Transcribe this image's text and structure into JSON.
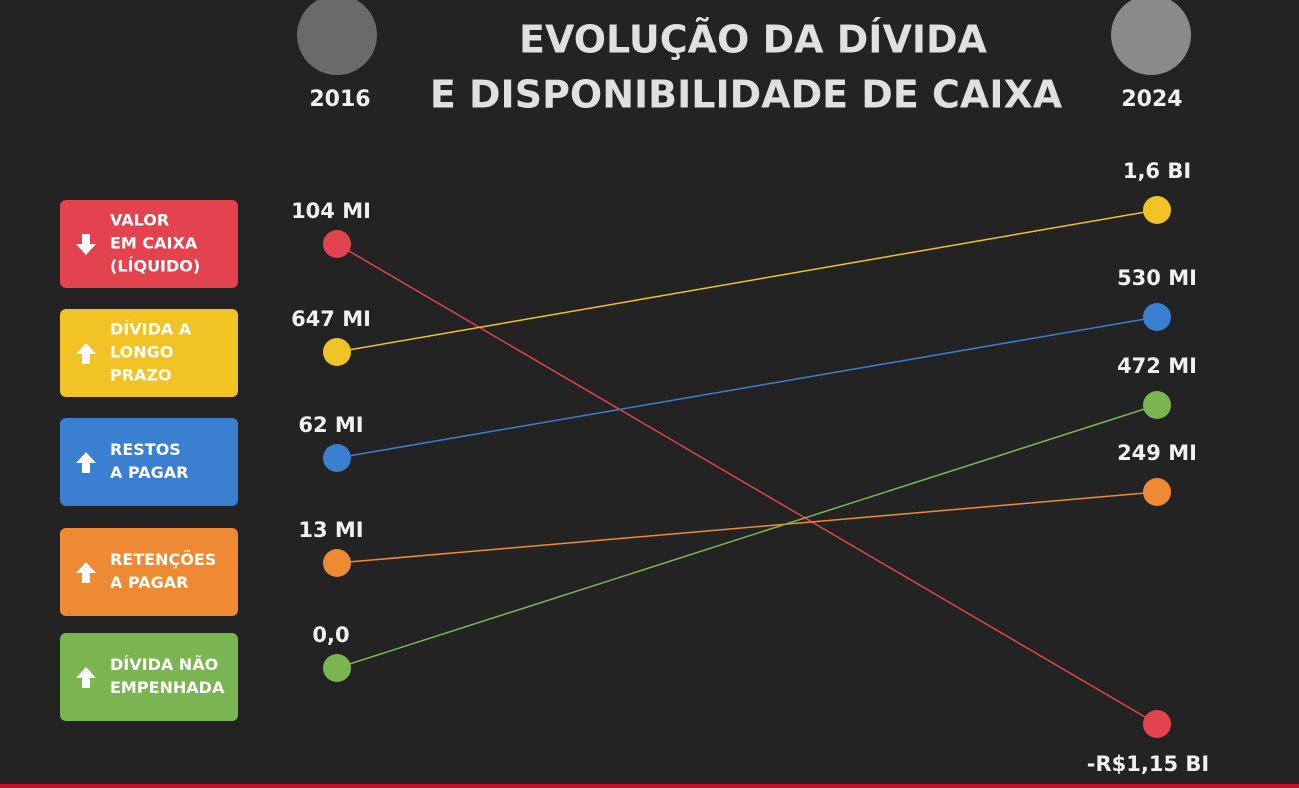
{
  "title_lines": [
    "EVOLUÇÃO DA DÍVIDA",
    "E DISPONIBILIDADE DE CAIXA"
  ],
  "years": [
    "2016",
    "2024"
  ],
  "items": [
    {
      "legend_lines": [
        "VALOR",
        "EM CAIXA",
        "(LÍQUIDO)"
      ],
      "color": "#e2434f",
      "trend": "down",
      "label_2016": "104 MI",
      "label_2024": "-R$1,15 BI"
    },
    {
      "legend_lines": [
        "DÍVIDA A",
        "LONGO",
        "PRAZO"
      ],
      "color": "#f2c324",
      "trend": "up",
      "label_2016": "647 MI",
      "label_2024": "1,6 BI"
    },
    {
      "legend_lines": [
        "RESTOS",
        "A PAGAR"
      ],
      "color": "#3b7fd1",
      "trend": "up",
      "label_2016": "62 MI",
      "label_2024": "530 MI"
    },
    {
      "legend_lines": [
        "RETENÇÕES",
        "A PAGAR"
      ],
      "color": "#ee8a34",
      "trend": "up",
      "label_2016": "13 MI",
      "label_2024": "249 MI"
    },
    {
      "legend_lines": [
        "DÍVIDA NÃO",
        "EMPENHADA"
      ],
      "color": "#7bb552",
      "trend": "up",
      "label_2016": "0,0",
      "label_2024": "472 MI"
    }
  ]
}
